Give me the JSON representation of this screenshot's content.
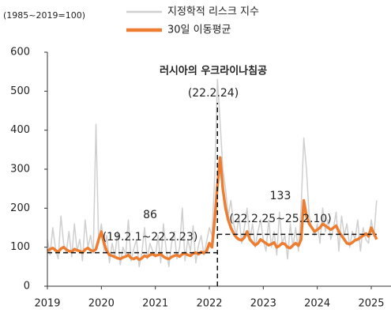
{
  "chart_data": {
    "type": "line",
    "unit_note": "(1985~2019=100)",
    "x": [
      2019.0,
      2019.05,
      2019.1,
      2019.15,
      2019.2,
      2019.25,
      2019.3,
      2019.35,
      2019.4,
      2019.45,
      2019.5,
      2019.55,
      2019.6,
      2019.65,
      2019.7,
      2019.75,
      2019.8,
      2019.85,
      2019.9,
      2019.95,
      2020.0,
      2020.05,
      2020.1,
      2020.15,
      2020.2,
      2020.25,
      2020.3,
      2020.35,
      2020.4,
      2020.45,
      2020.5,
      2020.55,
      2020.6,
      2020.65,
      2020.7,
      2020.75,
      2020.8,
      2020.85,
      2020.9,
      2020.95,
      2021.0,
      2021.05,
      2021.1,
      2021.15,
      2021.2,
      2021.25,
      2021.3,
      2021.35,
      2021.4,
      2021.45,
      2021.5,
      2021.55,
      2021.6,
      2021.65,
      2021.7,
      2021.75,
      2021.8,
      2021.85,
      2021.9,
      2021.95,
      2022.0,
      2022.05,
      2022.1,
      2022.15,
      2022.2,
      2022.25,
      2022.3,
      2022.35,
      2022.4,
      2022.45,
      2022.5,
      2022.55,
      2022.6,
      2022.65,
      2022.7,
      2022.75,
      2022.8,
      2022.85,
      2022.9,
      2022.95,
      2023.0,
      2023.05,
      2023.1,
      2023.15,
      2023.2,
      2023.25,
      2023.3,
      2023.35,
      2023.4,
      2023.45,
      2023.5,
      2023.55,
      2023.6,
      2023.65,
      2023.7,
      2023.75,
      2023.8,
      2023.85,
      2023.9,
      2023.95,
      2024.0,
      2024.05,
      2024.1,
      2024.15,
      2024.2,
      2024.25,
      2024.3,
      2024.35,
      2024.4,
      2024.45,
      2024.5,
      2024.55,
      2024.6,
      2024.65,
      2024.7,
      2024.75,
      2024.8,
      2024.85,
      2024.9,
      2024.95,
      2025.0,
      2025.05,
      2025.1
    ],
    "series": [
      {
        "name": "지정학적 리스크 지수",
        "color": "#cfcfcf",
        "width": 1.5,
        "values": [
          120,
          80,
          150,
          95,
          70,
          180,
          110,
          85,
          140,
          75,
          160,
          90,
          120,
          65,
          170,
          100,
          130,
          85,
          415,
          110,
          160,
          90,
          130,
          60,
          110,
          75,
          140,
          55,
          100,
          80,
          170,
          65,
          95,
          120,
          50,
          85,
          150,
          70,
          110,
          90,
          75,
          130,
          60,
          160,
          95,
          50,
          110,
          140,
          70,
          100,
          200,
          65,
          120,
          90,
          155,
          60,
          105,
          130,
          80,
          115,
          150,
          130,
          280,
          530,
          420,
          300,
          250,
          180,
          220,
          160,
          130,
          180,
          110,
          150,
          200,
          120,
          160,
          100,
          140,
          170,
          120,
          90,
          170,
          100,
          140,
          80,
          190,
          110,
          130,
          70,
          160,
          100,
          150,
          90,
          200,
          380,
          300,
          180,
          150,
          130,
          160,
          110,
          200,
          140,
          170,
          120,
          150,
          190,
          90,
          180,
          130,
          160,
          100,
          140,
          120,
          170,
          90,
          150,
          120,
          110,
          170,
          130,
          220
        ]
      },
      {
        "name": "30일 이동평균",
        "color": "#ed7d31",
        "width": 3.5,
        "values": [
          90,
          95,
          98,
          92,
          88,
          96,
          100,
          94,
          90,
          88,
          95,
          92,
          90,
          86,
          94,
          98,
          92,
          90,
          95,
          120,
          140,
          110,
          90,
          80,
          78,
          75,
          72,
          70,
          74,
          76,
          80,
          72,
          70,
          74,
          68,
          72,
          78,
          75,
          80,
          82,
          78,
          80,
          82,
          76,
          72,
          70,
          75,
          78,
          80,
          76,
          82,
          85,
          80,
          78,
          84,
          86,
          82,
          88,
          85,
          90,
          110,
          100,
          170,
          260,
          330,
          250,
          200,
          170,
          150,
          135,
          125,
          120,
          118,
          125,
          140,
          120,
          112,
          105,
          110,
          120,
          115,
          110,
          105,
          108,
          112,
          100,
          104,
          110,
          108,
          100,
          98,
          105,
          110,
          104,
          120,
          220,
          180,
          160,
          150,
          140,
          145,
          150,
          160,
          155,
          150,
          145,
          150,
          155,
          140,
          130,
          120,
          110,
          108,
          112,
          118,
          120,
          125,
          130,
          135,
          128,
          150,
          135,
          120
        ]
      }
    ],
    "xlim": [
      2019,
      2025
    ],
    "xticks": [
      2019,
      2020,
      2021,
      2022,
      2023,
      2024,
      2025
    ],
    "ylim": [
      0,
      600
    ],
    "yticks": [
      0,
      100,
      200,
      300,
      400,
      500,
      600
    ],
    "event": {
      "x": 2022.15,
      "label": "러시아의 우크라이나침공",
      "date_label": "(22.2.24)"
    },
    "reference_lines": [
      {
        "value": 86,
        "label": "(19.2.1~22.2.23)",
        "xrange": [
          2019.0,
          2022.15
        ]
      },
      {
        "value": 133,
        "label": "(22.2.25~25.2.10)",
        "xrange": [
          2022.15,
          2025.1
        ]
      }
    ]
  }
}
